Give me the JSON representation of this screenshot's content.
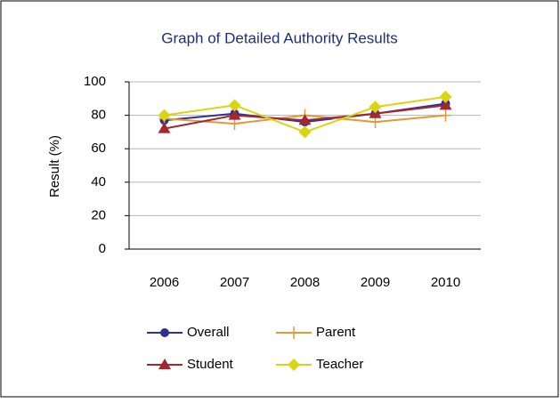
{
  "chart_data": {
    "type": "line",
    "title": "Graph of Detailed Authority Results",
    "y_label": "Result (%)",
    "categories": [
      "2006",
      "2007",
      "2008",
      "2009",
      "2010"
    ],
    "series": [
      {
        "name": "Overall",
        "color": "#2e3192",
        "marker": "circle",
        "values": [
          77,
          81,
          76,
          81,
          87
        ]
      },
      {
        "name": "Parent",
        "color": "#e09a3a",
        "marker": "plus",
        "values": [
          78,
          75,
          80,
          76,
          80
        ]
      },
      {
        "name": "Student",
        "color": "#a3282e",
        "marker": "triangle",
        "values": [
          72,
          80,
          77,
          81,
          86
        ]
      },
      {
        "name": "Teacher",
        "color": "#d9d414",
        "marker": "diamond",
        "values": [
          80,
          86,
          70,
          85,
          91
        ]
      }
    ],
    "ylim": [
      0,
      100
    ],
    "yticks": [
      0,
      20,
      40,
      60,
      80,
      100
    ],
    "grid": true
  }
}
